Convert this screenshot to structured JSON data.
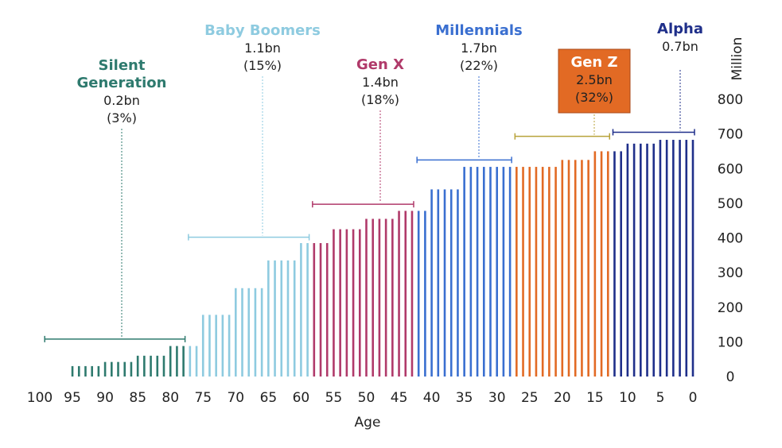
{
  "chart_data": {
    "type": "bar",
    "title": "",
    "xlabel": "Age",
    "ylabel": "Million",
    "xlim": [
      100,
      0
    ],
    "ylim": [
      0,
      800
    ],
    "x_ticks": [
      "100",
      "95",
      "90",
      "85",
      "80",
      "75",
      "70",
      "65",
      "60",
      "55",
      "50",
      "45",
      "40",
      "35",
      "30",
      "25",
      "20",
      "15",
      "10",
      "5",
      "0"
    ],
    "y_ticks": [
      "0",
      "100",
      "200",
      "300",
      "400",
      "500",
      "600",
      "700",
      "800"
    ],
    "age_groups": [
      {
        "start": 95,
        "end": 91,
        "value": 30
      },
      {
        "start": 90,
        "end": 86,
        "value": 42
      },
      {
        "start": 85,
        "end": 81,
        "value": 60
      },
      {
        "start": 80,
        "end": 76,
        "value": 88
      },
      {
        "start": 75,
        "end": 71,
        "value": 178
      },
      {
        "start": 70,
        "end": 66,
        "value": 255
      },
      {
        "start": 65,
        "end": 61,
        "value": 335
      },
      {
        "start": 60,
        "end": 56,
        "value": 385
      },
      {
        "start": 55,
        "end": 51,
        "value": 425
      },
      {
        "start": 50,
        "end": 46,
        "value": 455
      },
      {
        "start": 45,
        "end": 41,
        "value": 478
      },
      {
        "start": 40,
        "end": 36,
        "value": 540
      },
      {
        "start": 35,
        "end": 31,
        "value": 605
      },
      {
        "start": 30,
        "end": 26,
        "value": 605
      },
      {
        "start": 25,
        "end": 21,
        "value": 605
      },
      {
        "start": 20,
        "end": 16,
        "value": 625
      },
      {
        "start": 15,
        "end": 11,
        "value": 650
      },
      {
        "start": 10,
        "end": 6,
        "value": 672
      },
      {
        "start": 5,
        "end": 0,
        "value": 683
      }
    ],
    "generations": [
      {
        "name": "Silent Generation",
        "name_lines": [
          "Silent",
          "Generation"
        ],
        "total": "0.2bn",
        "share": "(3%)",
        "age_from": 99,
        "age_to": 78,
        "color": "#2e7a6e",
        "bracket_value": 108,
        "highlight": false
      },
      {
        "name": "Baby Boomers",
        "name_lines": [
          "Baby Boomers"
        ],
        "total": "1.1bn",
        "share": "(15%)",
        "age_from": 77,
        "age_to": 59,
        "color": "#8ecbe0",
        "bracket_value": 402,
        "highlight": false
      },
      {
        "name": "Gen X",
        "name_lines": [
          "Gen X"
        ],
        "total": "1.4bn",
        "share": "(18%)",
        "age_from": 58,
        "age_to": 43,
        "color": "#b03a6a",
        "bracket_value": 497,
        "highlight": false
      },
      {
        "name": "Millennials",
        "name_lines": [
          "Millennials"
        ],
        "total": "1.7bn",
        "share": "(22%)",
        "age_from": 42,
        "age_to": 28,
        "color": "#3a6fd0",
        "bracket_value": 625,
        "highlight": false
      },
      {
        "name": "Gen Z",
        "name_lines": [
          "Gen Z"
        ],
        "total": "2.5bn",
        "share": "(32%)",
        "age_from": 27,
        "age_to": 13,
        "color": "#e26a24",
        "bracket_value": 693,
        "highlight": true
      },
      {
        "name": "Alpha",
        "name_lines": [
          "Alpha"
        ],
        "total": "0.7bn",
        "share": "",
        "age_from": 12,
        "age_to": 0,
        "color": "#1f2f8a",
        "bracket_value": 705,
        "highlight": false
      }
    ]
  }
}
